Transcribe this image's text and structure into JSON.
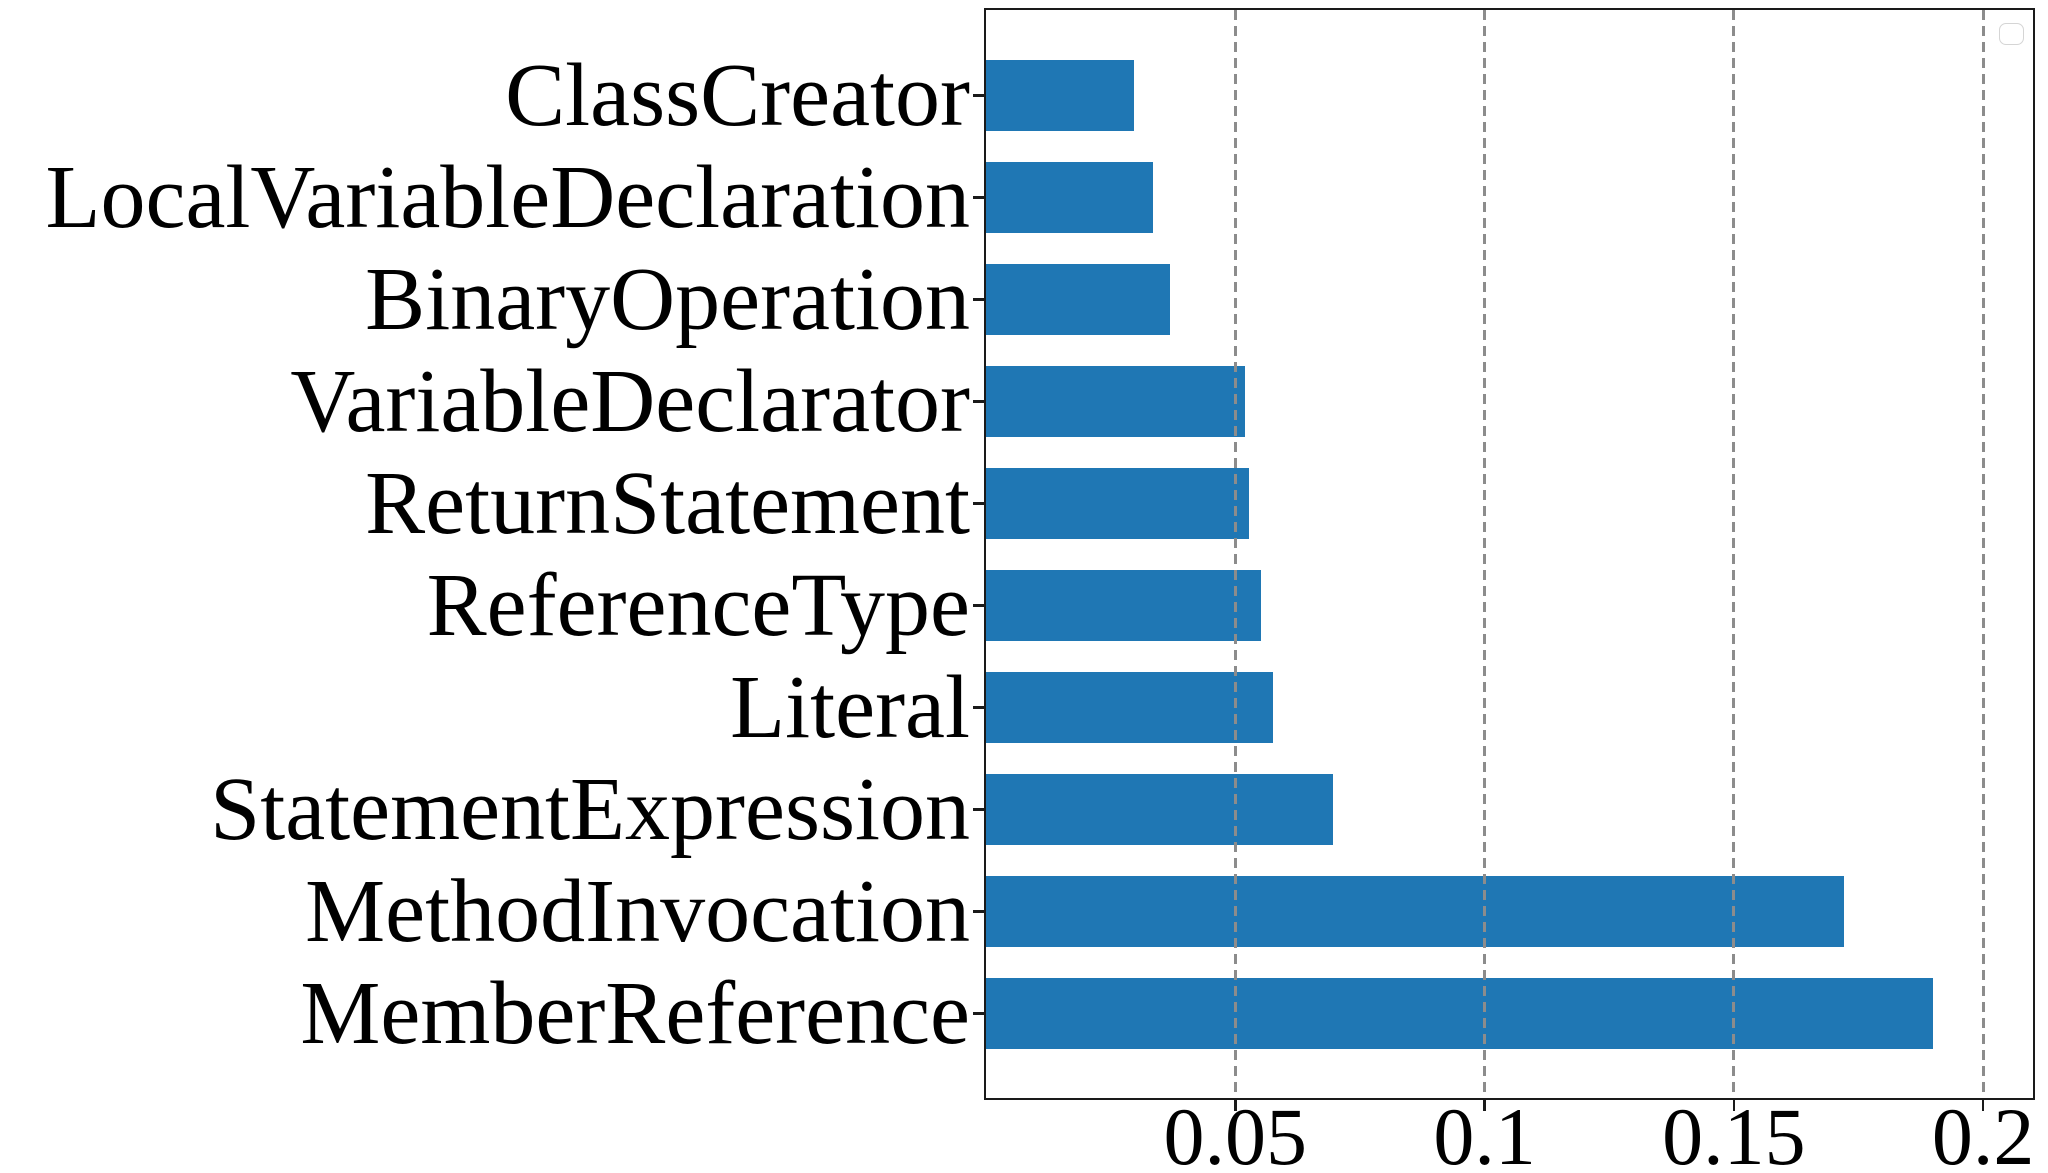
{
  "chart_data": {
    "type": "bar",
    "orientation": "horizontal",
    "title": "",
    "xlabel": "",
    "ylabel": "",
    "categories": [
      "ClassCreator",
      "LocalVariableDeclaration",
      "BinaryOperation",
      "VariableDeclarator",
      "ReturnStatement",
      "ReferenceType",
      "Literal",
      "StatementExpression",
      "MethodInvocation",
      "MemberReference"
    ],
    "values": [
      0.0297,
      0.0335,
      0.0369,
      0.052,
      0.0528,
      0.0552,
      0.0576,
      0.0695,
      0.172,
      0.19
    ],
    "xlim": [
      0,
      0.21
    ],
    "x_ticks": [
      0.05,
      0.1,
      0.15,
      0.2
    ],
    "x_tick_labels": [
      "0.05",
      "0.1",
      "0.15",
      "0.2"
    ],
    "grid": {
      "show": true,
      "axis": "x",
      "style": "dashed",
      "above_bars": true
    },
    "legend": {
      "visible": true,
      "entries": [],
      "location": "upper-right"
    },
    "colors": {
      "bar": "#1f77b4",
      "axis": "#1a1a1a",
      "gridline": "#8c8c8c",
      "text": "#000000",
      "legend_border": "#d5d5d5",
      "background": "#ffffff"
    }
  }
}
